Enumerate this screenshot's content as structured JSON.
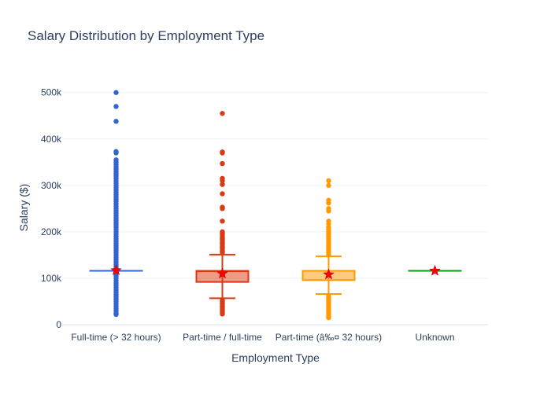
{
  "chart_data": {
    "type": "box",
    "title": "Salary Distribution by Employment Type",
    "xlabel": "Employment Type",
    "ylabel": "Salary ($)",
    "ylim": [
      0,
      530000
    ],
    "yticks": [
      {
        "value": 0,
        "label": "0"
      },
      {
        "value": 100000,
        "label": "100k"
      },
      {
        "value": 200000,
        "label": "200k"
      },
      {
        "value": 300000,
        "label": "300k"
      },
      {
        "value": 400000,
        "label": "400k"
      },
      {
        "value": 500000,
        "label": "500k"
      }
    ],
    "grid": true,
    "categories": [
      "Full-time (> 32 hours)",
      "Part-time / full-time",
      "Part-time (â‰¤ 32 hours)",
      "Unknown"
    ],
    "series": [
      {
        "category": "Full-time (> 32 hours)",
        "color": "#3366cc",
        "fill": "rgba(51,102,204,0.5)",
        "q1": 116000,
        "median": 116000,
        "q3": 116000,
        "whisker_low": 116000,
        "whisker_high": 116000,
        "mean": 117000,
        "outliers": [
          500000,
          470000,
          438000,
          373000,
          370000,
          355000,
          350000,
          345000,
          340000,
          335000,
          330000,
          325000,
          320000,
          315000,
          310000,
          305000,
          300000,
          295000,
          290000,
          285000,
          280000,
          275000,
          270000,
          265000,
          260000,
          255000,
          250000,
          245000,
          240000,
          235000,
          230000,
          225000,
          220000,
          215000,
          210000,
          205000,
          200000,
          195000,
          190000,
          185000,
          180000,
          175000,
          170000,
          165000,
          160000,
          155000,
          150000,
          145000,
          140000,
          135000,
          130000,
          125000,
          120000,
          110000,
          105000,
          100000,
          95000,
          90000,
          85000,
          80000,
          75000,
          70000,
          65000,
          60000,
          55000,
          50000,
          45000,
          40000,
          35000,
          30000,
          25000,
          22000
        ]
      },
      {
        "category": "Part-time / full-time",
        "color": "#dc3912",
        "fill": "rgba(220,57,18,0.5)",
        "q1": 92000,
        "median": 115000,
        "q3": 116000,
        "whisker_low": 57000,
        "whisker_high": 151000,
        "mean": 110000,
        "outliers": [
          455000,
          372000,
          370000,
          347000,
          315000,
          310000,
          302000,
          282000,
          253000,
          250000,
          223000,
          200000,
          197000,
          193000,
          188000,
          185000,
          182000,
          178000,
          175000,
          172000,
          168000,
          165000,
          162000,
          158000,
          155000,
          53000,
          50000,
          47000,
          44000,
          41000,
          38000,
          35000,
          32000,
          29000,
          26000,
          23000
        ]
      },
      {
        "category": "Part-time (â‰¤ 32 hours)",
        "color": "#ff9900",
        "fill": "rgba(255,153,0,0.5)",
        "q1": 96000,
        "median": 116000,
        "q3": 116000,
        "whisker_low": 66000,
        "whisker_high": 147000,
        "mean": 108000,
        "outliers": [
          310000,
          300000,
          268000,
          262000,
          250000,
          245000,
          223000,
          217000,
          210000,
          205000,
          200000,
          195000,
          190000,
          185000,
          180000,
          175000,
          170000,
          165000,
          160000,
          155000,
          151000,
          62000,
          58000,
          54000,
          50000,
          46000,
          42000,
          38000,
          34000,
          30000,
          26000,
          22000,
          18000,
          15000
        ]
      },
      {
        "category": "Unknown",
        "color": "#109618",
        "fill": "rgba(16,150,24,0.5)",
        "q1": 116000,
        "median": 116000,
        "q3": 116000,
        "whisker_low": 116000,
        "whisker_high": 116000,
        "mean": 116000,
        "outliers": []
      }
    ],
    "mean_marker_color": "#ff0000"
  }
}
